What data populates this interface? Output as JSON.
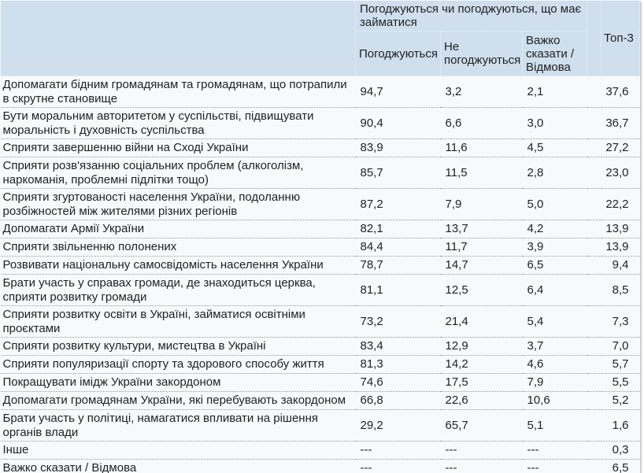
{
  "header": {
    "group_label": "Погоджуються чи погоджуються, що має займатися",
    "columns": {
      "agree": "Погоджуються",
      "disagree": "Не погоджуються",
      "hard_to_say": "Важко сказати / Відмова",
      "top3": "Топ-3"
    }
  },
  "colors": {
    "header_bg": "#cfdfee",
    "body_bg": "#f8f9fb",
    "row_divider": "#9a9a9a"
  },
  "rows": [
    {
      "label": "Допомагати бідним громадянам та громадянам, що потрапили в скрутне становище",
      "agree": "94,7",
      "disagree": "3,2",
      "hard": "2,1",
      "top3": "37,6"
    },
    {
      "label": "Бути моральним авторитетом у суспільстві, підвищувати моральність і духовність суспільства",
      "agree": "90,4",
      "disagree": "6,6",
      "hard": "3,0",
      "top3": "36,7"
    },
    {
      "label": "Сприяти завершенню війни на Сході України",
      "agree": "83,9",
      "disagree": "11,6",
      "hard": "4,5",
      "top3": "27,2"
    },
    {
      "label": "Сприяти розв'язанню соціальних проблем (алкоголізм, наркоманія, проблемні підлітки тощо)",
      "agree": "85,7",
      "disagree": "11,5",
      "hard": "2,8",
      "top3": "23,0"
    },
    {
      "label": "Сприяти згуртованості населення України, подоланню розбіжностей між жителями різних регіонів",
      "agree": "87,2",
      "disagree": "7,9",
      "hard": "5,0",
      "top3": "22,2"
    },
    {
      "label": "Допомагати Армії України",
      "agree": "82,1",
      "disagree": "13,7",
      "hard": "4,2",
      "top3": "13,9"
    },
    {
      "label": "Сприяти звільненню полонених",
      "agree": "84,4",
      "disagree": "11,7",
      "hard": "3,9",
      "top3": "13,9"
    },
    {
      "label": "Розвивати національну самосвідомість населення України",
      "agree": "78,7",
      "disagree": "14,7",
      "hard": "6,5",
      "top3": "9,4"
    },
    {
      "label": "Брати участь у справах громади, де знаходиться церква, сприяти розвитку громади",
      "agree": "81,1",
      "disagree": "12,5",
      "hard": "6,4",
      "top3": "8,5"
    },
    {
      "label": "Сприяти розвитку освіти в Україні, займатися освітніми проєктами",
      "agree": "73,2",
      "disagree": "21,4",
      "hard": "5,4",
      "top3": "7,3"
    },
    {
      "label": "Сприяти розвитку культури, мистецтва в Україні",
      "agree": "83,4",
      "disagree": "12,9",
      "hard": "3,7",
      "top3": "7,0"
    },
    {
      "label": "Сприяти популяризації спорту та здорового способу життя",
      "agree": "81,3",
      "disagree": "14,2",
      "hard": "4,6",
      "top3": "5,7"
    },
    {
      "label": "Покращувати імідж України закордоном",
      "agree": "74,6",
      "disagree": "17,5",
      "hard": "7,9",
      "top3": "5,5"
    },
    {
      "label": "Допомагати громадянам України, які перебувають закордоном",
      "agree": "66,8",
      "disagree": "22,6",
      "hard": "10,6",
      "top3": "5,2"
    },
    {
      "label": "Брати участь у політиці, намагатися впливати на рішення органів влади",
      "agree": "29,2",
      "disagree": "65,7",
      "hard": "5,1",
      "top3": "1,6"
    },
    {
      "label": "Інше",
      "agree": "---",
      "disagree": "---",
      "hard": "---",
      "top3": "0,3"
    },
    {
      "label": "Важко сказати / Відмова",
      "agree": "---",
      "disagree": "---",
      "hard": "---",
      "top3": "6,5"
    }
  ]
}
